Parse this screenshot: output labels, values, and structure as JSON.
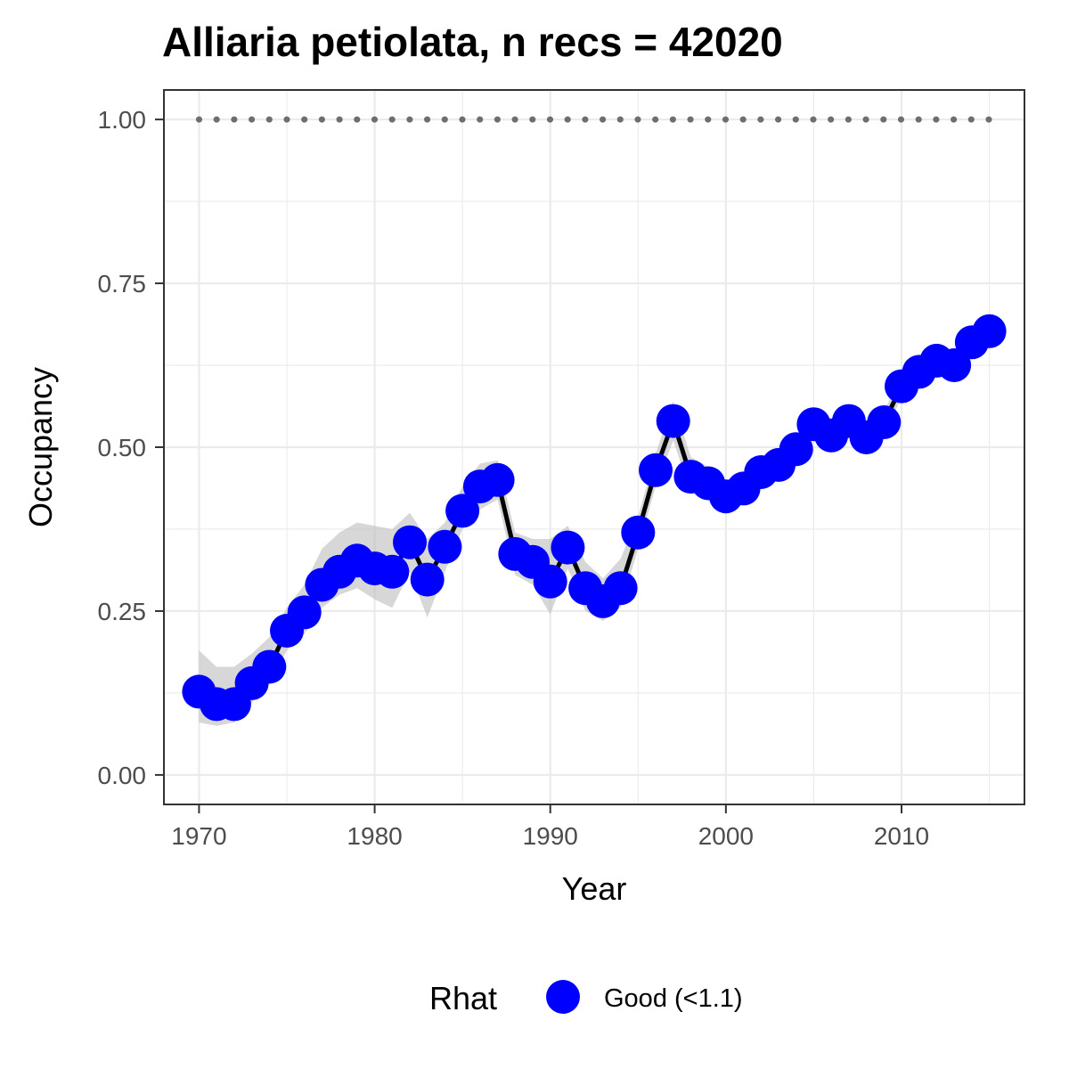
{
  "chart_data": {
    "type": "line",
    "title": "Alliaria petiolata, n recs = 42020",
    "xlabel": "Year",
    "ylabel": "Occupancy",
    "xlim": [
      1968,
      2017
    ],
    "ylim": [
      -0.045,
      1.045
    ],
    "x_ticks": [
      1970,
      1980,
      1990,
      2000,
      2010
    ],
    "x_tick_labels": [
      "1970",
      "1980",
      "1990",
      "2000",
      "2010"
    ],
    "y_ticks": [
      0,
      0.25,
      0.5,
      0.75,
      1.0
    ],
    "y_tick_labels": [
      "0.00",
      "0.25",
      "0.50",
      "0.75",
      "1.00"
    ],
    "grid": true,
    "legend": {
      "title": "Rhat",
      "position": "bottom",
      "entries": [
        {
          "label": "Good (<1.1)",
          "color": "#0000ff"
        }
      ]
    },
    "colors": {
      "points": "#0000ff",
      "line": "#000000",
      "ribbon": "#bdbdbd",
      "reference": "#6e6e6e",
      "panel_border": "#333333",
      "grid": "#ebebeb"
    },
    "reference_line": {
      "y": 1.0,
      "style": "dotted",
      "x_from": 1970,
      "x_to": 2015
    },
    "series": [
      {
        "name": "Good (<1.1)",
        "x": [
          1970,
          1971,
          1972,
          1973,
          1974,
          1975,
          1976,
          1977,
          1978,
          1979,
          1980,
          1981,
          1982,
          1983,
          1984,
          1985,
          1986,
          1987,
          1988,
          1989,
          1990,
          1991,
          1992,
          1993,
          1994,
          1995,
          1996,
          1997,
          1998,
          1999,
          2000,
          2001,
          2002,
          2003,
          2004,
          2005,
          2006,
          2007,
          2008,
          2009,
          2010,
          2011,
          2012,
          2013,
          2014,
          2015
        ],
        "y": [
          0.127,
          0.108,
          0.108,
          0.14,
          0.165,
          0.22,
          0.248,
          0.29,
          0.31,
          0.327,
          0.315,
          0.31,
          0.355,
          0.298,
          0.348,
          0.403,
          0.44,
          0.45,
          0.337,
          0.325,
          0.295,
          0.347,
          0.285,
          0.265,
          0.285,
          0.37,
          0.465,
          0.54,
          0.455,
          0.445,
          0.425,
          0.437,
          0.462,
          0.473,
          0.497,
          0.535,
          0.518,
          0.54,
          0.515,
          0.538,
          0.593,
          0.615,
          0.632,
          0.625,
          0.66,
          0.677
        ],
        "lower": [
          0.08,
          0.075,
          0.08,
          0.11,
          0.14,
          0.19,
          0.215,
          0.255,
          0.275,
          0.285,
          0.268,
          0.255,
          0.31,
          0.24,
          0.31,
          0.375,
          0.405,
          0.42,
          0.305,
          0.29,
          0.245,
          0.315,
          0.25,
          0.235,
          0.255,
          0.345,
          0.44,
          0.51,
          0.43,
          0.42,
          0.405,
          0.415,
          0.44,
          0.455,
          0.48,
          0.515,
          0.5,
          0.52,
          0.495,
          0.52,
          0.575,
          0.6,
          0.615,
          0.608,
          0.645,
          0.663
        ],
        "upper": [
          0.19,
          0.165,
          0.165,
          0.185,
          0.21,
          0.255,
          0.29,
          0.345,
          0.37,
          0.385,
          0.38,
          0.375,
          0.4,
          0.36,
          0.385,
          0.44,
          0.475,
          0.48,
          0.37,
          0.36,
          0.36,
          0.38,
          0.325,
          0.3,
          0.33,
          0.395,
          0.49,
          0.57,
          0.485,
          0.47,
          0.45,
          0.46,
          0.485,
          0.49,
          0.515,
          0.555,
          0.535,
          0.56,
          0.535,
          0.555,
          0.61,
          0.63,
          0.648,
          0.642,
          0.675,
          0.69
        ]
      }
    ]
  }
}
